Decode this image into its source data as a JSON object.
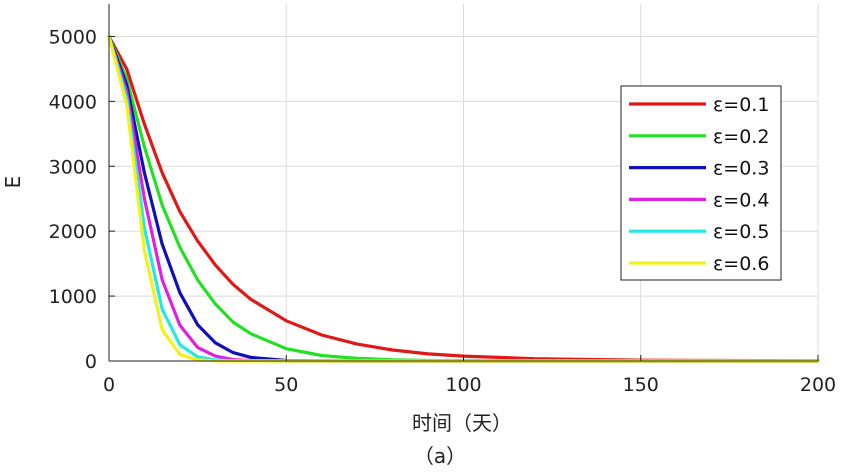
{
  "chart_data": {
    "type": "line",
    "xlabel": "时间（天）",
    "ylabel": "E",
    "caption": "（a）",
    "xlim": [
      0,
      200
    ],
    "ylim": [
      0,
      5500
    ],
    "xticks": [
      0,
      50,
      100,
      150,
      200
    ],
    "yticks": [
      0,
      1000,
      2000,
      3000,
      4000,
      5000
    ],
    "xtick_labels": [
      "0",
      "50",
      "100",
      "150",
      "200"
    ],
    "ytick_labels": [
      "0",
      "1000",
      "2000",
      "3000",
      "4000",
      "5000"
    ],
    "grid": true,
    "legend_position": "right",
    "x": [
      0,
      5,
      10,
      15,
      20,
      25,
      30,
      35,
      40,
      50,
      60,
      70,
      80,
      90,
      100,
      120,
      150,
      200
    ],
    "series": [
      {
        "name": "ε=0.1",
        "color": "#e01818",
        "values": [
          5000,
          4500,
          3650,
          2900,
          2300,
          1850,
          1480,
          1180,
          950,
          620,
          400,
          260,
          170,
          110,
          75,
          35,
          12,
          3
        ]
      },
      {
        "name": "ε=0.2",
        "color": "#22e022",
        "values": [
          5000,
          4350,
          3300,
          2400,
          1750,
          1250,
          880,
          600,
          420,
          190,
          85,
          40,
          18,
          8,
          4,
          1,
          0,
          0
        ]
      },
      {
        "name": "ε=0.3",
        "color": "#1010b8",
        "values": [
          5000,
          4250,
          2900,
          1800,
          1050,
          560,
          280,
          130,
          55,
          8,
          1,
          0,
          0,
          0,
          0,
          0,
          0,
          0
        ]
      },
      {
        "name": "ε=0.4",
        "color": "#e020e0",
        "values": [
          5000,
          4150,
          2500,
          1250,
          550,
          210,
          75,
          22,
          6,
          0,
          0,
          0,
          0,
          0,
          0,
          0,
          0,
          0
        ]
      },
      {
        "name": "ε=0.5",
        "color": "#22e8e8",
        "values": [
          5000,
          4050,
          2050,
          800,
          250,
          65,
          15,
          3,
          1,
          0,
          0,
          0,
          0,
          0,
          0,
          0,
          0,
          0
        ]
      },
      {
        "name": "ε=0.6",
        "color": "#f2f21a",
        "values": [
          5000,
          3950,
          1700,
          480,
          100,
          18,
          3,
          0,
          0,
          0,
          0,
          0,
          0,
          0,
          0,
          0,
          0,
          0
        ]
      }
    ]
  }
}
